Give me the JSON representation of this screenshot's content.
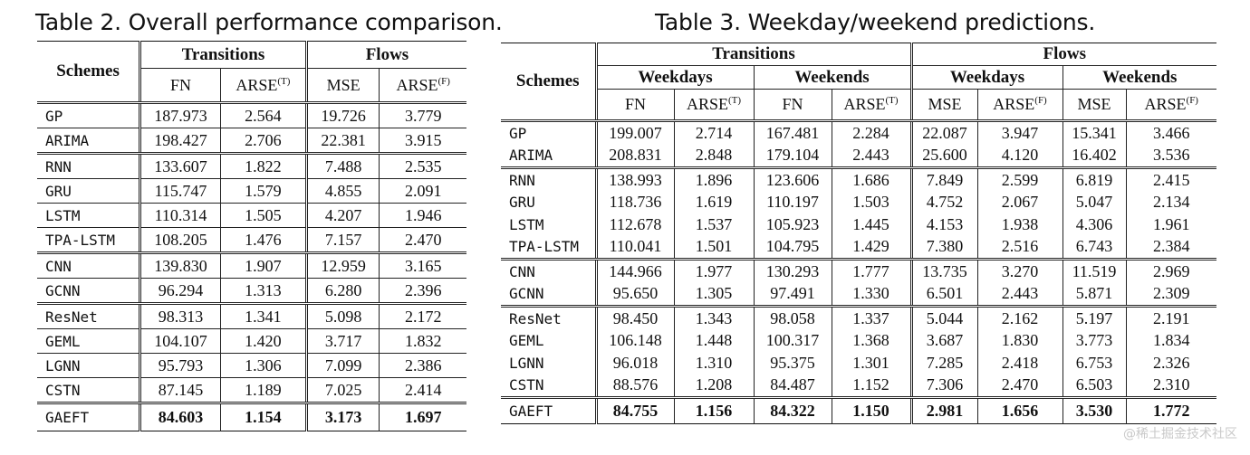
{
  "table2": {
    "caption": "Table 2.  Overall performance comparison.",
    "schemes_label": "Schemes",
    "group_transitions": "Transitions",
    "group_flows": "Flows",
    "col_fn": "FN",
    "col_arse": "ARSE",
    "sup_t": "(T)",
    "col_mse": "MSE",
    "sup_f": "(F)",
    "rows": [
      {
        "scheme": "GP",
        "fn": "187.973",
        "arse_t": "2.564",
        "mse": "19.726",
        "arse_f": "3.779"
      },
      {
        "scheme": "ARIMA",
        "fn": "198.427",
        "arse_t": "2.706",
        "mse": "22.381",
        "arse_f": "3.915"
      },
      {
        "scheme": "RNN",
        "fn": "133.607",
        "arse_t": "1.822",
        "mse": "7.488",
        "arse_f": "2.535"
      },
      {
        "scheme": "GRU",
        "fn": "115.747",
        "arse_t": "1.579",
        "mse": "4.855",
        "arse_f": "2.091"
      },
      {
        "scheme": "LSTM",
        "fn": "110.314",
        "arse_t": "1.505",
        "mse": "4.207",
        "arse_f": "1.946"
      },
      {
        "scheme": "TPA-LSTM",
        "fn": "108.205",
        "arse_t": "1.476",
        "mse": "7.157",
        "arse_f": "2.470"
      },
      {
        "scheme": "CNN",
        "fn": "139.830",
        "arse_t": "1.907",
        "mse": "12.959",
        "arse_f": "3.165"
      },
      {
        "scheme": "GCNN",
        "fn": "96.294",
        "arse_t": "1.313",
        "mse": "6.280",
        "arse_f": "2.396"
      },
      {
        "scheme": "ResNet",
        "fn": "98.313",
        "arse_t": "1.341",
        "mse": "5.098",
        "arse_f": "2.172"
      },
      {
        "scheme": "GEML",
        "fn": "104.107",
        "arse_t": "1.420",
        "mse": "3.717",
        "arse_f": "1.832"
      },
      {
        "scheme": "LGNN",
        "fn": "95.793",
        "arse_t": "1.306",
        "mse": "7.099",
        "arse_f": "2.386"
      },
      {
        "scheme": "CSTN",
        "fn": "87.145",
        "arse_t": "1.189",
        "mse": "7.025",
        "arse_f": "2.414"
      },
      {
        "scheme": "GAEFT",
        "fn": "84.603",
        "arse_t": "1.154",
        "mse": "3.173",
        "arse_f": "1.697"
      }
    ]
  },
  "table3": {
    "caption": "Table 3.  Weekday/weekend predictions.",
    "schemes_label": "Schemes",
    "group_transitions": "Transitions",
    "group_flows": "Flows",
    "sub_weekdays": "Weekdays",
    "sub_weekends": "Weekends",
    "col_fn": "FN",
    "col_arse": "ARSE",
    "sup_t": "(T)",
    "col_mse": "MSE",
    "sup_f": "(F)",
    "rows": [
      {
        "scheme": "GP",
        "v": [
          "199.007",
          "2.714",
          "167.481",
          "2.284",
          "22.087",
          "3.947",
          "15.341",
          "3.466"
        ]
      },
      {
        "scheme": "ARIMA",
        "v": [
          "208.831",
          "2.848",
          "179.104",
          "2.443",
          "25.600",
          "4.120",
          "16.402",
          "3.536"
        ]
      },
      {
        "scheme": "RNN",
        "v": [
          "138.993",
          "1.896",
          "123.606",
          "1.686",
          "7.849",
          "2.599",
          "6.819",
          "2.415"
        ]
      },
      {
        "scheme": "GRU",
        "v": [
          "118.736",
          "1.619",
          "110.197",
          "1.503",
          "4.752",
          "2.067",
          "5.047",
          "2.134"
        ]
      },
      {
        "scheme": "LSTM",
        "v": [
          "112.678",
          "1.537",
          "105.923",
          "1.445",
          "4.153",
          "1.938",
          "4.306",
          "1.961"
        ]
      },
      {
        "scheme": "TPA-LSTM",
        "v": [
          "110.041",
          "1.501",
          "104.795",
          "1.429",
          "7.380",
          "2.516",
          "6.743",
          "2.384"
        ]
      },
      {
        "scheme": "CNN",
        "v": [
          "144.966",
          "1.977",
          "130.293",
          "1.777",
          "13.735",
          "3.270",
          "11.519",
          "2.969"
        ]
      },
      {
        "scheme": "GCNN",
        "v": [
          "95.650",
          "1.305",
          "97.491",
          "1.330",
          "6.501",
          "2.443",
          "5.871",
          "2.309"
        ]
      },
      {
        "scheme": "ResNet",
        "v": [
          "98.450",
          "1.343",
          "98.058",
          "1.337",
          "5.044",
          "2.162",
          "5.197",
          "2.191"
        ]
      },
      {
        "scheme": "GEML",
        "v": [
          "106.148",
          "1.448",
          "100.317",
          "1.368",
          "3.687",
          "1.830",
          "3.773",
          "1.834"
        ]
      },
      {
        "scheme": "LGNN",
        "v": [
          "96.018",
          "1.310",
          "95.375",
          "1.301",
          "7.285",
          "2.418",
          "6.753",
          "2.326"
        ]
      },
      {
        "scheme": "CSTN",
        "v": [
          "88.576",
          "1.208",
          "84.487",
          "1.152",
          "7.306",
          "2.470",
          "6.503",
          "2.310"
        ]
      },
      {
        "scheme": "GAEFT",
        "v": [
          "84.755",
          "1.156",
          "84.322",
          "1.150",
          "2.981",
          "1.656",
          "3.530",
          "1.772"
        ]
      }
    ]
  },
  "watermark": "@稀土掘金技术社区"
}
